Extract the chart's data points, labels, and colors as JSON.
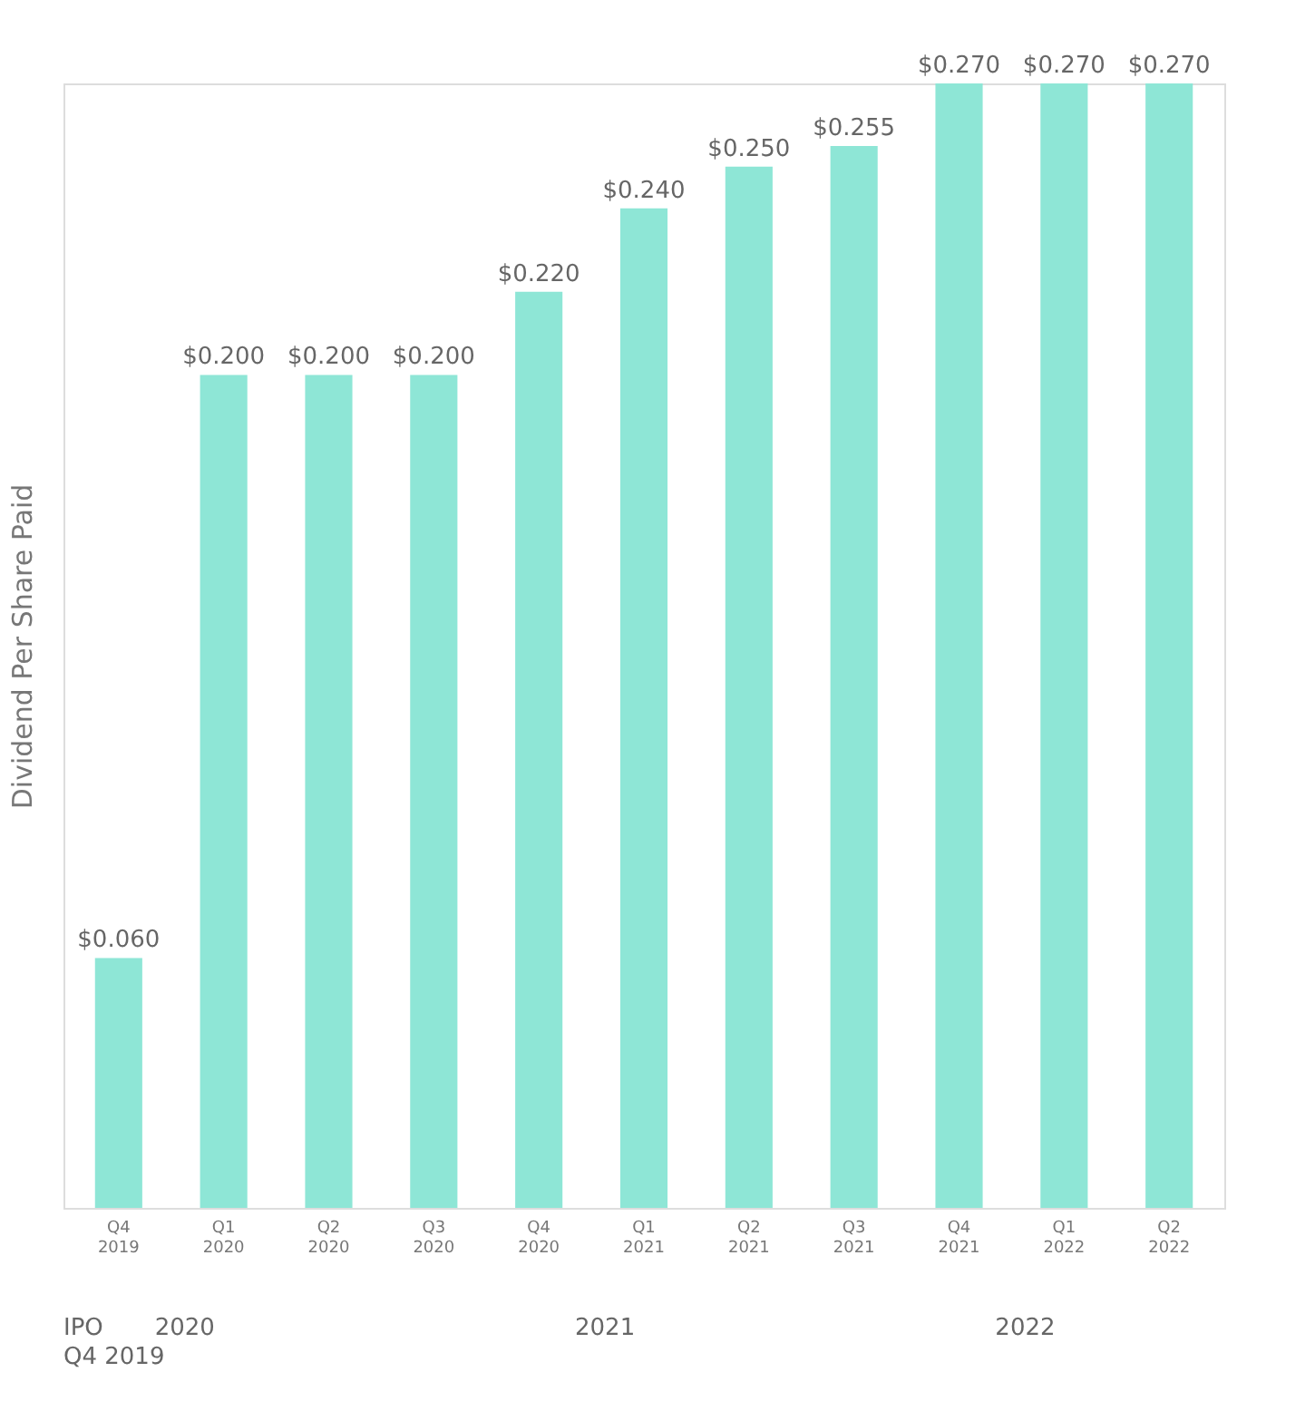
{
  "chart_data": {
    "type": "bar",
    "ylabel": "Dividend Per Share Paid",
    "categories": [
      "Q4 2019",
      "Q1 2020",
      "Q2 2020",
      "Q3 2020",
      "Q4 2020",
      "Q1 2021",
      "Q2 2021",
      "Q3 2021",
      "Q4 2021",
      "Q1 2022",
      "Q2 2022"
    ],
    "values": [
      0.06,
      0.2,
      0.2,
      0.2,
      0.22,
      0.24,
      0.25,
      0.255,
      0.27,
      0.27,
      0.27
    ],
    "value_labels": [
      "$0.060",
      "$0.200",
      "$0.200",
      "$0.200",
      "$0.220",
      "$0.240",
      "$0.250",
      "$0.255",
      "$0.270",
      "$0.270",
      "$0.270"
    ],
    "color": "#8ee6d6",
    "ylim": [
      0,
      0.27
    ],
    "annotations": [
      "IPO Q4 2019",
      "2020",
      "2021",
      "2022"
    ]
  }
}
